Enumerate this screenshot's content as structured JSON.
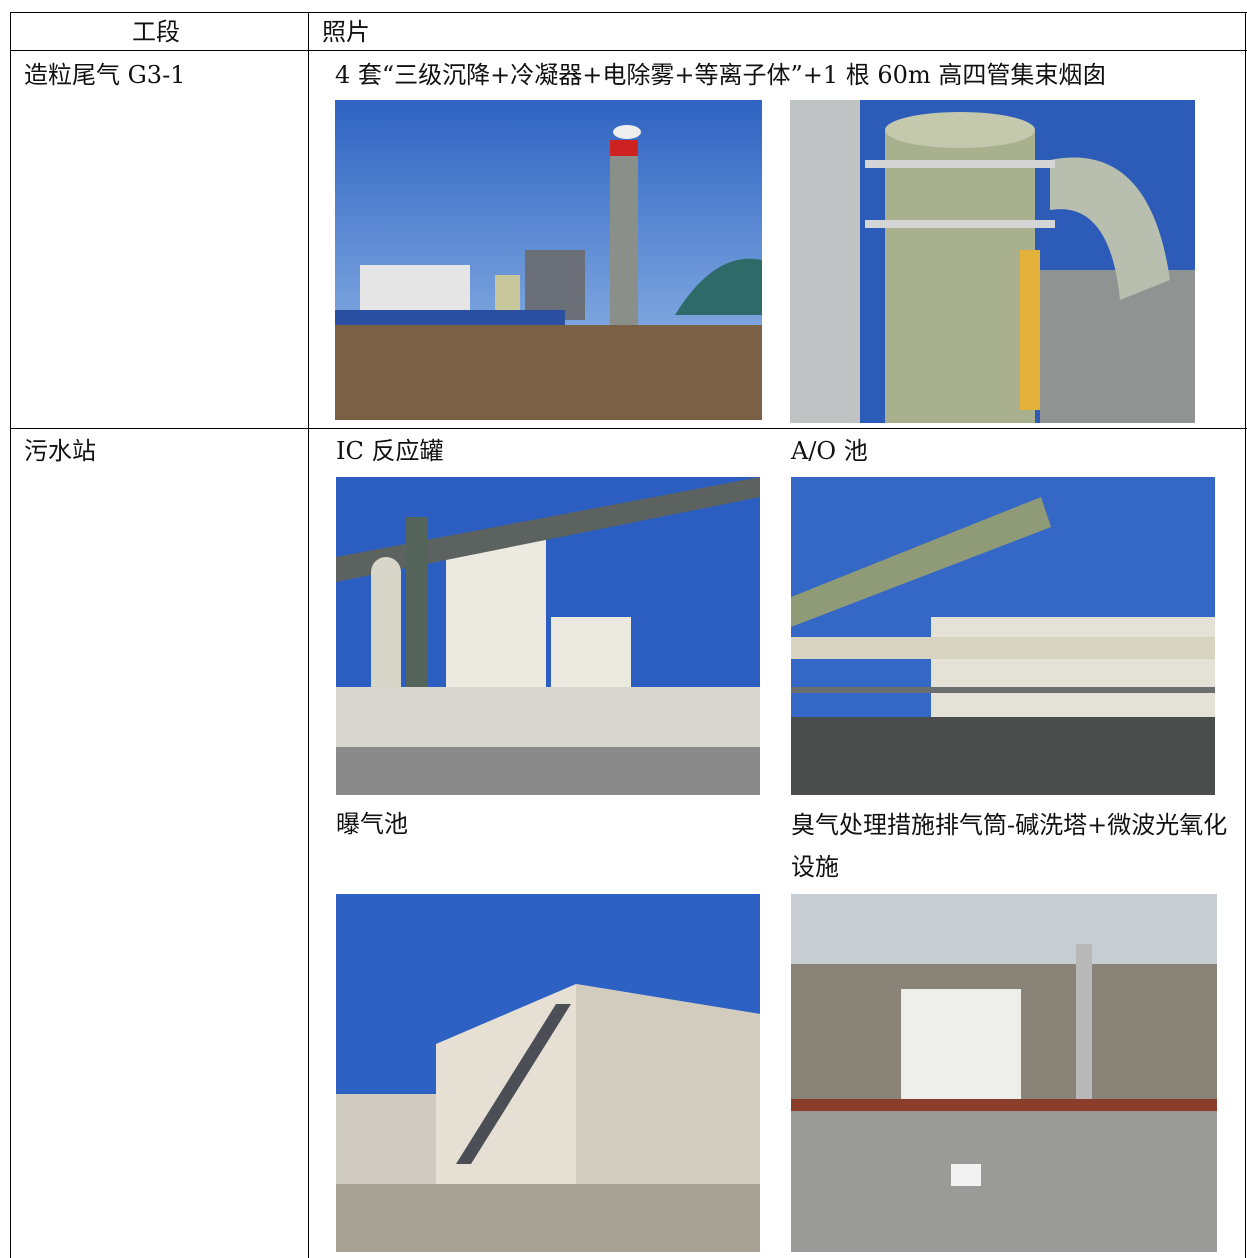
{
  "table": {
    "header": [
      "工段",
      "照片"
    ],
    "rows": [
      {
        "section": "造粒尾气 G3-1",
        "caption": "4 套“三级沉降+冷凝器+电除雾+等离子体”+1 根 60m 高四管集束烟囱"
      },
      {
        "section": "污水站",
        "captions": [
          "IC 反应罐",
          "A/O 池",
          "曝气池",
          "臭气处理措施排气筒-碱洗塔+微波光氧化设施"
        ]
      }
    ]
  }
}
